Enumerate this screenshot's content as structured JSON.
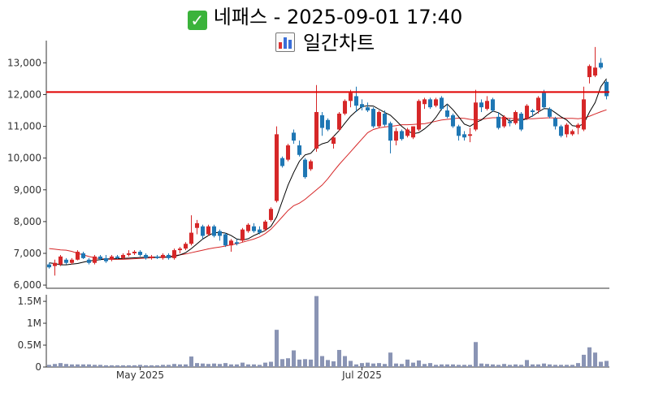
{
  "header": {
    "check_icon": "check-mark-icon",
    "title": "네패스 - 2025-09-01 17:40",
    "chart_icon": "bar-chart-icon",
    "subtitle": "일간차트"
  },
  "colors": {
    "up": "#d62728",
    "down": "#1f77b4",
    "ma_short": "#000000",
    "ma_long": "#d62728",
    "hline": "#e00000",
    "volume": "#8a94b4"
  },
  "chart_data": [
    {
      "type": "candlestick",
      "title": "",
      "ylim": [
        5900,
        13700
      ],
      "yticks": [
        6000,
        7000,
        8000,
        9000,
        10000,
        11000,
        12000,
        13000
      ],
      "ytick_labels": [
        "6,000",
        "7,000",
        "8,000",
        "9,000",
        "10,000",
        "11,000",
        "12,000",
        "13,000"
      ],
      "reference_line": 12080,
      "grid": false,
      "series_ohlc": [
        [
          6650,
          6700,
          6520,
          6560
        ],
        [
          6600,
          6800,
          6300,
          6700
        ],
        [
          6650,
          6950,
          6600,
          6900
        ],
        [
          6800,
          6850,
          6650,
          6700
        ],
        [
          6700,
          6850,
          6650,
          6800
        ],
        [
          6800,
          7100,
          6780,
          7050
        ],
        [
          7000,
          7050,
          6820,
          6850
        ],
        [
          6800,
          6850,
          6650,
          6700
        ],
        [
          6700,
          6950,
          6650,
          6900
        ],
        [
          6900,
          6950,
          6780,
          6820
        ],
        [
          6850,
          6950,
          6700,
          6750
        ],
        [
          6800,
          6950,
          6750,
          6900
        ],
        [
          6900,
          6950,
          6820,
          6850
        ],
        [
          6850,
          7000,
          6820,
          6950
        ],
        [
          6950,
          7100,
          6900,
          7000
        ],
        [
          7000,
          7100,
          6950,
          7050
        ],
        [
          7050,
          7100,
          6900,
          6950
        ],
        [
          6950,
          7000,
          6800,
          6850
        ],
        [
          6850,
          6950,
          6800,
          6900
        ],
        [
          6900,
          6950,
          6820,
          6850
        ],
        [
          6850,
          7000,
          6800,
          6950
        ],
        [
          6950,
          7000,
          6800,
          6850
        ],
        [
          6850,
          7150,
          6800,
          7100
        ],
        [
          7100,
          7200,
          7000,
          7150
        ],
        [
          7150,
          7350,
          7100,
          7300
        ],
        [
          7300,
          8200,
          7250,
          7650
        ],
        [
          7800,
          8050,
          7600,
          7950
        ],
        [
          7850,
          7900,
          7450,
          7550
        ],
        [
          7600,
          7900,
          7550,
          7850
        ],
        [
          7850,
          7900,
          7500,
          7550
        ],
        [
          7700,
          7750,
          7400,
          7550
        ],
        [
          7600,
          7650,
          7200,
          7250
        ],
        [
          7250,
          7450,
          7050,
          7400
        ],
        [
          7350,
          7450,
          7250,
          7300
        ],
        [
          7400,
          7800,
          7350,
          7750
        ],
        [
          7700,
          7950,
          7650,
          7900
        ],
        [
          7850,
          7950,
          7650,
          7700
        ],
        [
          7750,
          7850,
          7600,
          7650
        ],
        [
          7750,
          8050,
          7700,
          8000
        ],
        [
          8050,
          8450,
          8000,
          8400
        ],
        [
          8650,
          11000,
          8600,
          10750
        ],
        [
          10000,
          10050,
          9700,
          9750
        ],
        [
          9950,
          10450,
          9900,
          10400
        ],
        [
          10800,
          10900,
          10450,
          10550
        ],
        [
          10400,
          10550,
          10050,
          10100
        ],
        [
          9950,
          10000,
          9350,
          9400
        ],
        [
          9650,
          9950,
          9600,
          9900
        ],
        [
          10300,
          12300,
          10200,
          11450
        ],
        [
          11350,
          11450,
          10700,
          10950
        ],
        [
          11200,
          11250,
          10850,
          10900
        ],
        [
          10450,
          10700,
          10300,
          10650
        ],
        [
          10900,
          11450,
          10850,
          11400
        ],
        [
          11400,
          11850,
          11350,
          11800
        ],
        [
          11800,
          12150,
          11600,
          12050
        ],
        [
          11950,
          12250,
          11450,
          11650
        ],
        [
          11700,
          11850,
          11500,
          11600
        ],
        [
          11600,
          11750,
          11450,
          11500
        ],
        [
          11550,
          11600,
          10950,
          11000
        ],
        [
          11000,
          11500,
          10950,
          11450
        ],
        [
          11400,
          11500,
          11000,
          11050
        ],
        [
          11100,
          11150,
          10150,
          10550
        ],
        [
          10550,
          10950,
          10400,
          10850
        ],
        [
          10850,
          10900,
          10550,
          10600
        ],
        [
          10700,
          10950,
          10650,
          10900
        ],
        [
          10650,
          11000,
          10600,
          11000
        ],
        [
          10900,
          11850,
          10850,
          11800
        ],
        [
          11700,
          11900,
          11550,
          11850
        ],
        [
          11850,
          11900,
          11550,
          11600
        ],
        [
          11650,
          11900,
          11600,
          11850
        ],
        [
          11900,
          11950,
          11500,
          11550
        ],
        [
          11500,
          11700,
          11250,
          11300
        ],
        [
          11350,
          11400,
          10950,
          11000
        ],
        [
          11000,
          11050,
          10550,
          10700
        ],
        [
          10750,
          10850,
          10550,
          10650
        ],
        [
          10700,
          10950,
          10500,
          10750
        ],
        [
          10900,
          12150,
          10850,
          11750
        ],
        [
          11750,
          11850,
          11450,
          11600
        ],
        [
          11550,
          11950,
          11500,
          11800
        ],
        [
          11850,
          11900,
          11450,
          11500
        ],
        [
          11300,
          11450,
          10900,
          10950
        ],
        [
          11000,
          11350,
          10950,
          11300
        ],
        [
          11150,
          11250,
          11000,
          11100
        ],
        [
          11100,
          11500,
          11050,
          11450
        ],
        [
          11400,
          11450,
          10850,
          10900
        ],
        [
          11250,
          11700,
          11200,
          11650
        ],
        [
          11500,
          11550,
          11300,
          11450
        ],
        [
          11500,
          11950,
          11400,
          11900
        ],
        [
          12050,
          12150,
          11550,
          11600
        ],
        [
          11550,
          11600,
          11250,
          11300
        ],
        [
          11250,
          11300,
          10900,
          11000
        ],
        [
          11000,
          11050,
          10650,
          10700
        ],
        [
          10750,
          11100,
          10650,
          11050
        ],
        [
          10750,
          10900,
          10700,
          10850
        ],
        [
          10950,
          11100,
          10750,
          11050
        ],
        [
          10900,
          12250,
          10850,
          11850
        ],
        [
          12550,
          12950,
          12350,
          12900
        ],
        [
          12600,
          13500,
          12550,
          12850
        ],
        [
          13000,
          13150,
          12800,
          12850
        ],
        [
          12400,
          12450,
          11850,
          11950
        ]
      ],
      "moving_average_short": [
        6700,
        6680,
        6640,
        6640,
        6660,
        6680,
        6720,
        6760,
        6780,
        6800,
        6820,
        6830,
        6830,
        6840,
        6850,
        6860,
        6870,
        6880,
        6880,
        6880,
        6880,
        6880,
        6900,
        6950,
        7020,
        7150,
        7300,
        7450,
        7560,
        7650,
        7660,
        7640,
        7560,
        7450,
        7420,
        7460,
        7560,
        7640,
        7720,
        7850,
        8150,
        8650,
        9150,
        9550,
        9900,
        10100,
        10150,
        10350,
        10450,
        10500,
        10680,
        10870,
        11100,
        11320,
        11480,
        11620,
        11650,
        11640,
        11540,
        11440,
        11350,
        11180,
        11000,
        10860,
        10770,
        10800,
        10920,
        11070,
        11280,
        11550,
        11700,
        11520,
        11300,
        11070,
        11000,
        11120,
        11200,
        11350,
        11480,
        11430,
        11300,
        11160,
        11210,
        11180,
        11240,
        11330,
        11450,
        11560,
        11550,
        11430,
        11300,
        11200,
        11020,
        11000,
        11080,
        11450,
        11750,
        12250,
        12500
      ],
      "moving_average_long": [
        7150,
        7130,
        7110,
        7100,
        7060,
        7000,
        6950,
        6900,
        6860,
        6830,
        6820,
        6810,
        6810,
        6810,
        6820,
        6830,
        6840,
        6850,
        6860,
        6870,
        6880,
        6900,
        6930,
        6950,
        6980,
        7020,
        7060,
        7100,
        7140,
        7170,
        7200,
        7230,
        7270,
        7300,
        7350,
        7400,
        7450,
        7520,
        7620,
        7760,
        7950,
        8150,
        8350,
        8500,
        8580,
        8700,
        8850,
        9000,
        9150,
        9350,
        9580,
        9800,
        10000,
        10200,
        10400,
        10600,
        10800,
        10900,
        10950,
        10980,
        11000,
        11020,
        11050,
        11050,
        11060,
        11070,
        11080,
        11120,
        11160,
        11200,
        11220,
        11240,
        11260,
        11250,
        11220,
        11200,
        11220,
        11250,
        11270,
        11270,
        11260,
        11250,
        11240,
        11240,
        11240,
        11240,
        11250,
        11260,
        11270,
        11260,
        11260,
        11250,
        11250,
        11240,
        11260,
        11320,
        11390,
        11460,
        11520
      ]
    },
    {
      "type": "bar",
      "title": "",
      "ylim": [
        0,
        1650000
      ],
      "yticks": [
        0,
        500000,
        1000000,
        1500000
      ],
      "ytick_labels": [
        "0",
        "0.5M",
        "1M",
        "1.5M"
      ],
      "xtick_labels": [
        {
          "label": "May 2025",
          "index": 16
        },
        {
          "label": "Jul 2025",
          "index": 55
        }
      ],
      "values": [
        50000,
        70000,
        90000,
        70000,
        60000,
        60000,
        60000,
        60000,
        50000,
        50000,
        40000,
        40000,
        40000,
        40000,
        40000,
        40000,
        50000,
        40000,
        40000,
        40000,
        50000,
        50000,
        70000,
        60000,
        60000,
        240000,
        90000,
        80000,
        70000,
        80000,
        70000,
        90000,
        60000,
        60000,
        100000,
        60000,
        60000,
        50000,
        100000,
        120000,
        850000,
        180000,
        200000,
        380000,
        170000,
        180000,
        170000,
        1620000,
        250000,
        160000,
        130000,
        390000,
        250000,
        140000,
        60000,
        90000,
        100000,
        80000,
        90000,
        70000,
        330000,
        80000,
        70000,
        170000,
        100000,
        150000,
        70000,
        90000,
        50000,
        60000,
        60000,
        60000,
        50000,
        50000,
        50000,
        570000,
        80000,
        70000,
        60000,
        50000,
        70000,
        50000,
        60000,
        50000,
        160000,
        60000,
        60000,
        80000,
        60000,
        50000,
        50000,
        50000,
        50000,
        90000,
        280000,
        450000,
        330000,
        120000,
        140000
      ]
    }
  ]
}
